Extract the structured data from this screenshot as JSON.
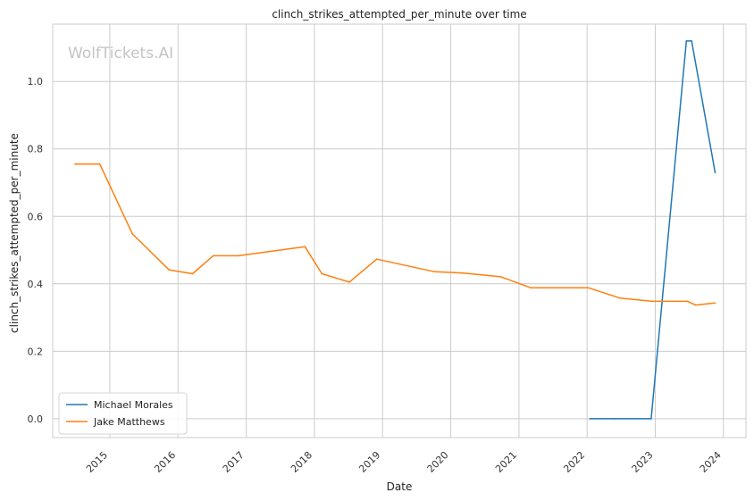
{
  "watermark": "WolfTickets.AI",
  "colors": {
    "grid": "#cccccc",
    "frame": "#cccccc",
    "background": "#ffffff"
  },
  "chart_data": {
    "type": "line",
    "title": "clinch_strikes_attempted_per_minute over time",
    "xlabel": "Date",
    "ylabel": "clinch_strikes_attempted_per_minute",
    "x_ticks": [
      "2015",
      "2016",
      "2017",
      "2018",
      "2019",
      "2020",
      "2021",
      "2022",
      "2023",
      "2024"
    ],
    "y_ticks": [
      "0.0",
      "0.2",
      "0.4",
      "0.6",
      "0.8",
      "1.0"
    ],
    "xlim": [
      "2014-03-01",
      "2024-05-01"
    ],
    "ylim": [
      -0.056,
      1.17
    ],
    "grid": true,
    "legend_position": "lower-left",
    "series": [
      {
        "name": "Michael Morales",
        "color": "#1f77b4",
        "points": [
          {
            "x": "2022-01-15",
            "y": 0.0
          },
          {
            "x": "2022-06-01",
            "y": 0.0
          },
          {
            "x": "2022-12-10",
            "y": 0.0
          },
          {
            "x": "2023-06-17",
            "y": 1.12
          },
          {
            "x": "2023-07-15",
            "y": 1.12
          },
          {
            "x": "2023-11-18",
            "y": 0.73
          }
        ]
      },
      {
        "name": "Jake Matthews",
        "color": "#ff7f0e",
        "points": [
          {
            "x": "2014-06-28",
            "y": 0.755
          },
          {
            "x": "2014-11-08",
            "y": 0.755
          },
          {
            "x": "2015-05-02",
            "y": 0.548
          },
          {
            "x": "2015-11-15",
            "y": 0.441
          },
          {
            "x": "2016-03-19",
            "y": 0.43
          },
          {
            "x": "2016-07-08",
            "y": 0.483
          },
          {
            "x": "2016-11-19",
            "y": 0.483
          },
          {
            "x": "2017-11-11",
            "y": 0.51
          },
          {
            "x": "2018-02-10",
            "y": 0.43
          },
          {
            "x": "2018-07-07",
            "y": 0.405
          },
          {
            "x": "2018-12-01",
            "y": 0.473
          },
          {
            "x": "2019-10-05",
            "y": 0.436
          },
          {
            "x": "2020-03-07",
            "y": 0.432
          },
          {
            "x": "2020-09-26",
            "y": 0.421
          },
          {
            "x": "2021-03-06",
            "y": 0.388
          },
          {
            "x": "2022-01-08",
            "y": 0.388
          },
          {
            "x": "2022-06-25",
            "y": 0.358
          },
          {
            "x": "2022-12-17",
            "y": 0.348
          },
          {
            "x": "2023-06-24",
            "y": 0.348
          },
          {
            "x": "2023-08-05",
            "y": 0.337
          },
          {
            "x": "2023-11-18",
            "y": 0.343
          }
        ]
      }
    ]
  }
}
